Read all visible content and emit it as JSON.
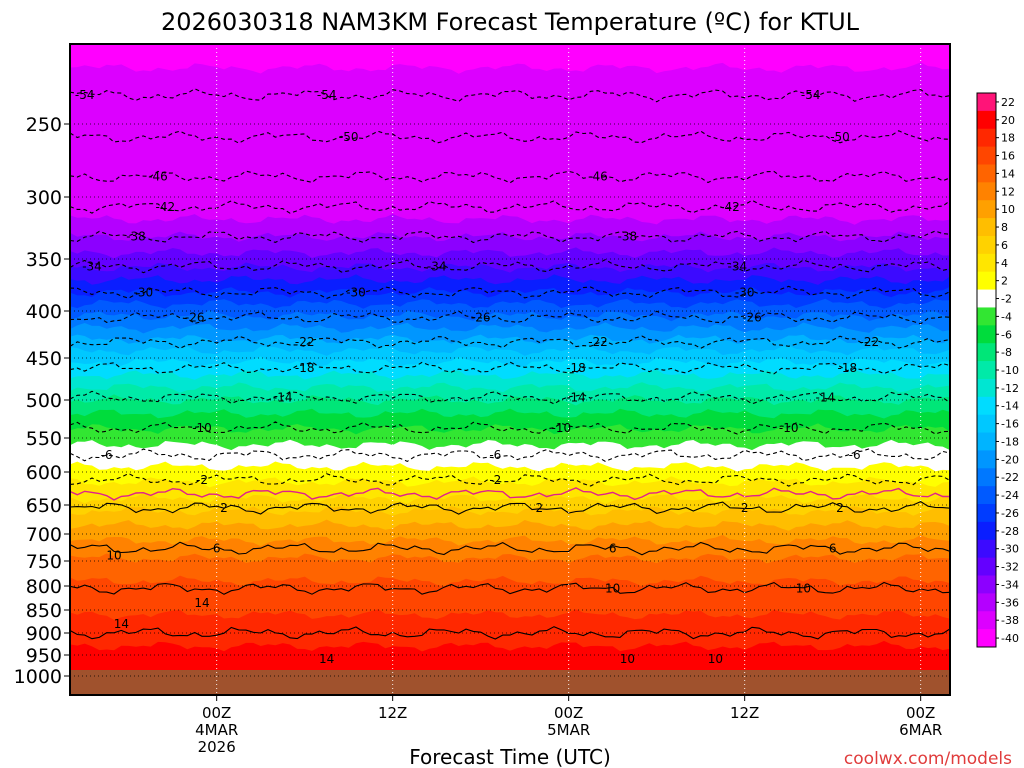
{
  "chart_data": {
    "type": "heatmap",
    "title": "2026030318 NAM3KM Forecast Temperature (ºC) for KTUL",
    "xlabel": "Forecast Time (UTC)",
    "ylabel": "Pressure (hPa)",
    "x_range_hours": [
      -4,
      56
    ],
    "y_range_hpa": [
      200,
      1025
    ],
    "y_ticks": [
      "250",
      "300",
      "350",
      "400",
      "450",
      "500",
      "550",
      "600",
      "650",
      "700",
      "750",
      "800",
      "850",
      "900",
      "950",
      "1000"
    ],
    "y_tick_values": [
      250,
      300,
      350,
      400,
      450,
      500,
      550,
      600,
      650,
      700,
      750,
      800,
      850,
      900,
      950,
      1000
    ],
    "x_ticks": [
      {
        "hours": 6,
        "l1": "00Z",
        "l2": "4MAR",
        "l3": "2026"
      },
      {
        "hours": 18,
        "l1": "12Z",
        "l2": "",
        "l3": ""
      },
      {
        "hours": 30,
        "l1": "00Z",
        "l2": "5MAR",
        "l3": ""
      },
      {
        "hours": 42,
        "l1": "12Z",
        "l2": "",
        "l3": ""
      },
      {
        "hours": 54,
        "l1": "00Z",
        "l2": "6MAR",
        "l3": ""
      }
    ],
    "colorbar": {
      "labels": [
        "22",
        "20",
        "18",
        "16",
        "14",
        "12",
        "10",
        "8",
        "6",
        "4",
        "2",
        "-2",
        "-4",
        "-6",
        "-8",
        "-10",
        "-12",
        "-14",
        "-16",
        "-18",
        "-20",
        "-22",
        "-24",
        "-26",
        "-28",
        "-30",
        "-32",
        "-34",
        "-36",
        "-38",
        "-40"
      ],
      "colors": [
        "#ff1478",
        "#ff0000",
        "#ff2800",
        "#ff4600",
        "#ff6400",
        "#ff8200",
        "#ffa000",
        "#ffbe00",
        "#ffd200",
        "#ffe600",
        "#ffff00",
        "#ffffff",
        "#32e632",
        "#00dc3c",
        "#00e678",
        "#00eaa8",
        "#00e6d2",
        "#00dcff",
        "#00c8ff",
        "#00b4ff",
        "#0096ff",
        "#0078ff",
        "#005aff",
        "#003cff",
        "#0a1eff",
        "#3c0aff",
        "#6400ff",
        "#8c00ff",
        "#b400ff",
        "#dc00ff",
        "#ff00ff"
      ]
    },
    "contour_levels": [
      {
        "temp": -54,
        "p": 232
      },
      {
        "temp": -50,
        "p": 259
      },
      {
        "temp": -46,
        "p": 286
      },
      {
        "temp": -42,
        "p": 308
      },
      {
        "temp": -38,
        "p": 332
      },
      {
        "temp": -34,
        "p": 357
      },
      {
        "temp": -30,
        "p": 382
      },
      {
        "temp": -26,
        "p": 407
      },
      {
        "temp": -22,
        "p": 433
      },
      {
        "temp": -18,
        "p": 462
      },
      {
        "temp": -14,
        "p": 497
      },
      {
        "temp": -10,
        "p": 537
      },
      {
        "temp": -6,
        "p": 575
      },
      {
        "temp": -2,
        "p": 612
      },
      {
        "temp": 2,
        "p": 655
      },
      {
        "temp": 6,
        "p": 727
      },
      {
        "temp": 10,
        "p": 805
      },
      {
        "temp": 14,
        "p": 900
      }
    ],
    "freezing_line_label": "0",
    "contour_labels": [
      {
        "text": "-54",
        "hours": -3,
        "p": 232
      },
      {
        "text": "-54",
        "hours": 13.5,
        "p": 232
      },
      {
        "text": "-54",
        "hours": 46.5,
        "p": 232
      },
      {
        "text": "-50",
        "hours": 15,
        "p": 259
      },
      {
        "text": "-50",
        "hours": 48.5,
        "p": 259
      },
      {
        "text": "-46",
        "hours": 2,
        "p": 286
      },
      {
        "text": "-46",
        "hours": 32,
        "p": 286
      },
      {
        "text": "-42",
        "hours": 2.5,
        "p": 308
      },
      {
        "text": "-42",
        "hours": 41,
        "p": 308
      },
      {
        "text": "-38",
        "hours": 0.5,
        "p": 332
      },
      {
        "text": "-38",
        "hours": 34,
        "p": 332
      },
      {
        "text": "-34",
        "hours": -2.5,
        "p": 357
      },
      {
        "text": "-34",
        "hours": 21,
        "p": 357
      },
      {
        "text": "-34",
        "hours": 41.5,
        "p": 357
      },
      {
        "text": "-30",
        "hours": 1,
        "p": 382
      },
      {
        "text": "-30",
        "hours": 15.5,
        "p": 382
      },
      {
        "text": "-30",
        "hours": 42,
        "p": 382
      },
      {
        "text": "-26",
        "hours": 4.5,
        "p": 407
      },
      {
        "text": "-26",
        "hours": 24,
        "p": 407
      },
      {
        "text": "-26",
        "hours": 42.5,
        "p": 407
      },
      {
        "text": "-22",
        "hours": 12,
        "p": 433
      },
      {
        "text": "-22",
        "hours": 32,
        "p": 433
      },
      {
        "text": "-22",
        "hours": 50.5,
        "p": 433
      },
      {
        "text": "-18",
        "hours": 12,
        "p": 462
      },
      {
        "text": "-18",
        "hours": 30.5,
        "p": 462
      },
      {
        "text": "-18",
        "hours": 49,
        "p": 462
      },
      {
        "text": "-14",
        "hours": 10.5,
        "p": 497
      },
      {
        "text": "-14",
        "hours": 30.5,
        "p": 497
      },
      {
        "text": "-14",
        "hours": 47.5,
        "p": 497
      },
      {
        "text": "-10",
        "hours": 5,
        "p": 537
      },
      {
        "text": "-10",
        "hours": 29.5,
        "p": 537
      },
      {
        "text": "-10",
        "hours": 45,
        "p": 537
      },
      {
        "text": "-6",
        "hours": -1.5,
        "p": 575
      },
      {
        "text": "-6",
        "hours": 25,
        "p": 575
      },
      {
        "text": "-6",
        "hours": 49.5,
        "p": 575
      },
      {
        "text": "-2",
        "hours": 5,
        "p": 612
      },
      {
        "text": "-2",
        "hours": 25,
        "p": 612
      },
      {
        "text": "2",
        "hours": 6.5,
        "p": 655
      },
      {
        "text": "2",
        "hours": 28,
        "p": 655
      },
      {
        "text": "2",
        "hours": 48.5,
        "p": 655
      },
      {
        "text": "2",
        "hours": 42,
        "p": 655
      },
      {
        "text": "6",
        "hours": 6,
        "p": 727
      },
      {
        "text": "6",
        "hours": 33,
        "p": 727
      },
      {
        "text": "6",
        "hours": 48,
        "p": 727
      },
      {
        "text": "10",
        "hours": -1,
        "p": 740
      },
      {
        "text": "10",
        "hours": 33,
        "p": 805
      },
      {
        "text": "10",
        "hours": 46,
        "p": 805
      },
      {
        "text": "10",
        "hours": 34,
        "p": 960
      },
      {
        "text": "10",
        "hours": 40,
        "p": 960
      },
      {
        "text": "14",
        "hours": 5,
        "p": 835
      },
      {
        "text": "14",
        "hours": -0.5,
        "p": 880
      },
      {
        "text": "14",
        "hours": 13.5,
        "p": 960
      }
    ],
    "ground_color": "#a0522d",
    "branding": "coolwx.com/models"
  }
}
